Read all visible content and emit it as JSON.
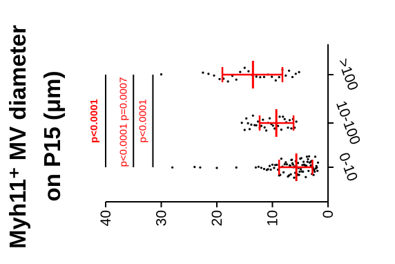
{
  "chart_data": {
    "type": "scatter",
    "title": "Myh11⁺ MV diameter",
    "subtitle": "on P15 (μm)",
    "categories": [
      "0-10",
      "10-100",
      ">100"
    ],
    "ylim": [
      0,
      40
    ],
    "yticks": [
      0,
      10,
      20,
      30,
      40
    ],
    "orientation": "rotated 90° counter-clockwise",
    "summary": [
      {
        "category": "0-10",
        "mean": 5.7,
        "sd_low": 2.8,
        "sd_high": 8.8
      },
      {
        "category": "10-100",
        "mean": 9.3,
        "sd_low": 6.2,
        "sd_high": 12.3
      },
      {
        "category": ">100",
        "mean": 13.5,
        "sd_low": 8.2,
        "sd_high": 19.0
      }
    ],
    "points": {
      "0-10": [
        28.0,
        24.0,
        23.0,
        20.0,
        16.5,
        13.0,
        12.5,
        12.0,
        11.5,
        11.0,
        10.8,
        10.5,
        10.3,
        10.0,
        9.7,
        9.5,
        9.2,
        9.0,
        8.8,
        8.6,
        8.4,
        8.2,
        8.0,
        7.8,
        7.6,
        7.4,
        7.2,
        7.0,
        6.9,
        6.8,
        6.7,
        6.6,
        6.5,
        6.4,
        6.3,
        6.2,
        6.1,
        6.0,
        5.9,
        5.8,
        5.7,
        5.6,
        5.5,
        5.4,
        5.3,
        5.2,
        5.1,
        5.0,
        4.9,
        4.8,
        4.7,
        4.6,
        4.5,
        4.4,
        4.3,
        4.2,
        4.1,
        4.0,
        3.9,
        3.8,
        3.7,
        3.6,
        3.5,
        3.4,
        3.3,
        3.2,
        3.1,
        3.0,
        2.9,
        2.8,
        2.7,
        2.6,
        2.5,
        2.4,
        2.3,
        2.2,
        2.1,
        2.0,
        1.9,
        1.8
      ],
      "10-100": [
        15.5,
        15.0,
        14.7,
        14.4,
        14.1,
        13.8,
        13.5,
        13.2,
        12.9,
        12.6,
        12.3,
        12.0,
        11.7,
        11.4,
        11.1,
        10.8,
        10.5,
        10.2,
        9.9,
        9.6,
        9.3,
        9.0,
        8.7,
        8.4,
        8.1,
        7.8,
        7.5,
        7.2,
        6.9,
        6.6,
        6.3,
        6.0,
        5.7
      ],
      ">100": [
        30.0,
        22.5,
        21.5,
        20.5,
        19.5,
        18.8,
        18.0,
        17.2,
        16.5,
        15.8,
        15.0,
        14.3,
        13.6,
        12.9,
        12.2,
        11.5,
        10.8,
        10.1,
        9.4,
        8.8,
        8.2,
        7.6,
        7.0,
        6.4,
        5.8,
        5.2
      ]
    },
    "comparisons": [
      {
        "label": "p<0.0001",
        "from": "0-10",
        "to": ">100",
        "y": 40,
        "color": "#ff0000",
        "bold": true
      },
      {
        "label": "p<0.0001",
        "from": "0-10",
        "to": "10-100",
        "y": 35,
        "color": "#ff0000",
        "bold": false
      },
      {
        "label": "p=0.0007",
        "from": "10-100",
        "to": ">100",
        "y": 35,
        "color": "#ff0000",
        "bold": false
      },
      {
        "label": "p<0.0001",
        "from": "0-10",
        "to": ">100",
        "y": 31.5,
        "color": "#ff0000",
        "bold": false
      }
    ],
    "colors": {
      "points": "#000000",
      "errorbar": "#ff0000",
      "axis": "#000000",
      "bracket": "#000000"
    }
  }
}
